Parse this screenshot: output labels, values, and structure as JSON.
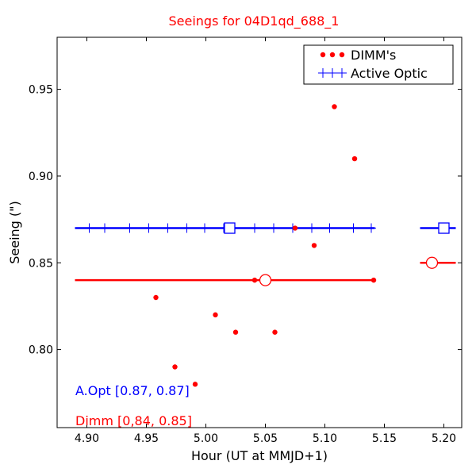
{
  "chart_data": {
    "type": "scatter",
    "title": "Seeings for 04D1qd_688_1",
    "xlabel": "Hour (UT at MMJD+1)",
    "ylabel": "Seeing (\")",
    "xlim": [
      4.875,
      5.215
    ],
    "ylim": [
      0.755,
      0.98
    ],
    "x_ticks": [
      4.9,
      4.95,
      5.0,
      5.05,
      5.1,
      5.15,
      5.2
    ],
    "x_tick_labels": [
      "4.90",
      "4.95",
      "5.00",
      "5.05",
      "5.10",
      "5.15",
      "5.20"
    ],
    "y_ticks": [
      0.8,
      0.85,
      0.9,
      0.95
    ],
    "y_tick_labels": [
      "0.80",
      "0.85",
      "0.90",
      "0.95"
    ],
    "grid": false,
    "legend_position": "top-right",
    "series": [
      {
        "name": "DIMM's",
        "color": "#ff0000",
        "marker": "dot",
        "points": [
          {
            "x": 4.958,
            "y": 0.83
          },
          {
            "x": 4.974,
            "y": 0.79
          },
          {
            "x": 4.991,
            "y": 0.78
          },
          {
            "x": 5.008,
            "y": 0.82
          },
          {
            "x": 5.025,
            "y": 0.81
          },
          {
            "x": 5.041,
            "y": 0.84
          },
          {
            "x": 5.058,
            "y": 0.81
          },
          {
            "x": 5.075,
            "y": 0.87
          },
          {
            "x": 5.091,
            "y": 0.86
          },
          {
            "x": 5.108,
            "y": 0.94
          },
          {
            "x": 5.125,
            "y": 0.91
          },
          {
            "x": 5.141,
            "y": 0.84
          }
        ]
      },
      {
        "name": "Active Optic",
        "color": "#0000ff",
        "marker": "plus",
        "points": [
          {
            "x": 4.902,
            "y": 0.87
          },
          {
            "x": 4.915,
            "y": 0.87
          },
          {
            "x": 4.936,
            "y": 0.87
          },
          {
            "x": 4.952,
            "y": 0.87
          },
          {
            "x": 4.968,
            "y": 0.87
          },
          {
            "x": 4.984,
            "y": 0.87
          },
          {
            "x": 4.999,
            "y": 0.87
          },
          {
            "x": 5.015,
            "y": 0.87
          },
          {
            "x": 5.041,
            "y": 0.87
          },
          {
            "x": 5.057,
            "y": 0.87
          },
          {
            "x": 5.073,
            "y": 0.87
          },
          {
            "x": 5.089,
            "y": 0.87
          },
          {
            "x": 5.104,
            "y": 0.87
          },
          {
            "x": 5.124,
            "y": 0.87
          },
          {
            "x": 5.139,
            "y": 0.87
          },
          {
            "x": 5.202,
            "y": 0.87
          }
        ]
      }
    ],
    "summary_lines": [
      {
        "color": "#0000ff",
        "x_start": 4.89,
        "x_end": 5.142,
        "y": 0.87,
        "marker": "square",
        "marker_x": 5.02
      },
      {
        "color": "#0000ff",
        "x_start": 5.18,
        "x_end": 5.21,
        "y": 0.87,
        "marker": "square",
        "marker_x": 5.2
      },
      {
        "color": "#ff0000",
        "x_start": 4.89,
        "x_end": 5.142,
        "y": 0.84,
        "marker": "circle",
        "marker_x": 5.05
      },
      {
        "color": "#ff0000",
        "x_start": 5.18,
        "x_end": 5.21,
        "y": 0.85,
        "marker": "circle",
        "marker_x": 5.19
      }
    ],
    "annotations": [
      {
        "text": "A.Opt [0.87, 0.87]",
        "color": "#0000ff"
      },
      {
        "text": "Dimm [0,84, 0.85]",
        "color": "#ff0000"
      }
    ]
  }
}
